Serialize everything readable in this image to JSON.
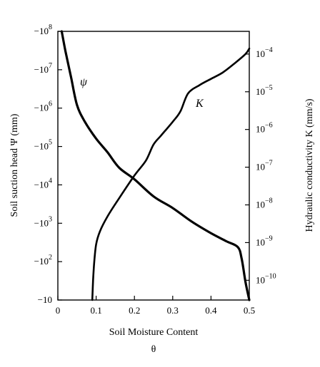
{
  "chart_data": {
    "type": "line",
    "xlabel": "Soil Moisture Content",
    "xlabel_symbol": "θ",
    "xlim": [
      0,
      0.5
    ],
    "x_ticks": [
      {
        "value": 0,
        "label": "0"
      },
      {
        "value": 0.1,
        "label": "0.1"
      },
      {
        "value": 0.2,
        "label": "0.2"
      },
      {
        "value": 0.3,
        "label": "0.3"
      },
      {
        "value": 0.4,
        "label": "0.4"
      },
      {
        "value": 0.5,
        "label": "0.5"
      }
    ],
    "y_left": {
      "label": "Soil suction head Ψ (mm)",
      "scale": "log",
      "range_abs": [
        10,
        100000000
      ],
      "ticks": [
        {
          "base": "−10",
          "exp": "8",
          "value": 100000000
        },
        {
          "base": "−10",
          "exp": "7",
          "value": 10000000
        },
        {
          "base": "−10",
          "exp": "6",
          "value": 1000000
        },
        {
          "base": "−10",
          "exp": "5",
          "value": 100000
        },
        {
          "base": "−10",
          "exp": "4",
          "value": 10000
        },
        {
          "base": "−10",
          "exp": "3",
          "value": 1000
        },
        {
          "base": "−10",
          "exp": "2",
          "value": 100
        },
        {
          "base": "−10",
          "exp": "",
          "value": 10
        }
      ]
    },
    "y_right": {
      "label": "Hydraulic conductivity K (mm/s)",
      "scale": "log",
      "range": [
        3e-11,
        0.0004
      ],
      "ticks": [
        {
          "base": "10",
          "exp": "−4",
          "value": 0.0001
        },
        {
          "base": "10",
          "exp": "−5",
          "value": 1e-05
        },
        {
          "base": "10",
          "exp": "−6",
          "value": 1e-06
        },
        {
          "base": "10",
          "exp": "−7",
          "value": 1e-07
        },
        {
          "base": "10",
          "exp": "−8",
          "value": 1e-08
        },
        {
          "base": "10",
          "exp": "−9",
          "value": 1e-09
        },
        {
          "base": "10",
          "exp": "−10",
          "value": 1e-10
        }
      ]
    },
    "series": [
      {
        "name": "ψ",
        "axis": "left",
        "x": [
          0.01,
          0.02,
          0.035,
          0.05,
          0.07,
          0.1,
          0.13,
          0.16,
          0.2,
          0.25,
          0.3,
          0.35,
          0.4,
          0.44,
          0.47,
          0.48,
          0.49,
          0.5
        ],
        "y_abs": [
          100000000,
          30000000,
          6000000,
          1200000,
          450000,
          160000,
          70000,
          28000,
          14000,
          5000,
          2500,
          1100,
          550,
          340,
          240,
          120,
          30,
          10
        ]
      },
      {
        "name": "K",
        "axis": "right",
        "x": [
          0.09,
          0.092,
          0.095,
          0.1,
          0.11,
          0.13,
          0.16,
          0.2,
          0.23,
          0.25,
          0.27,
          0.3,
          0.32,
          0.34,
          0.37,
          0.4,
          0.43,
          0.46,
          0.49,
          0.5
        ],
        "y": [
          3e-11,
          1e-10,
          3e-10,
          9e-10,
          2e-09,
          5e-09,
          1.5e-08,
          6e-08,
          1.5e-07,
          4e-07,
          7e-07,
          1.6e-06,
          3e-06,
          9e-06,
          1.5e-05,
          2.2e-05,
          3.2e-05,
          5.5e-05,
          0.0001,
          0.00014
        ]
      }
    ],
    "annotations": [
      {
        "text": "ψ",
        "series": "ψ"
      },
      {
        "text": "K",
        "series": "K"
      }
    ],
    "grid": false,
    "legend": "none"
  }
}
